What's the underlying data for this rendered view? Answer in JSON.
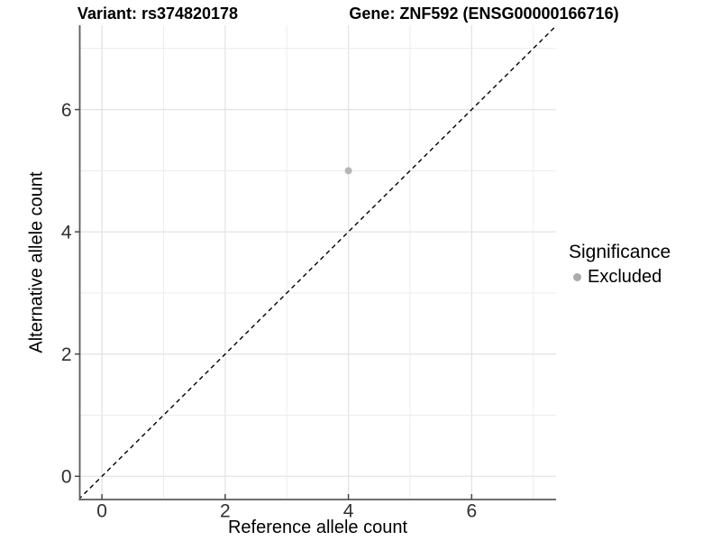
{
  "titles": {
    "variant": "Variant: rs374820178",
    "gene": "Gene: ZNF592 (ENSG00000166716)"
  },
  "legend": {
    "title": "Significance",
    "items": [
      {
        "label": "Excluded",
        "color": "#ababab"
      }
    ]
  },
  "chart_data": {
    "type": "scatter",
    "title": "Variant: rs374820178 / Gene: ZNF592 (ENSG00000166716)",
    "xlabel": "Reference allele count",
    "ylabel": "Alternative allele count",
    "xlim": [
      -0.36,
      7.37
    ],
    "ylim": [
      -0.38,
      7.38
    ],
    "x_ticks": [
      {
        "value": 0,
        "label": "0"
      },
      {
        "value": 1,
        "label": ""
      },
      {
        "value": 2,
        "label": "2"
      },
      {
        "value": 3,
        "label": ""
      },
      {
        "value": 4,
        "label": "4"
      },
      {
        "value": 5,
        "label": ""
      },
      {
        "value": 6,
        "label": "6"
      },
      {
        "value": 7,
        "label": ""
      }
    ],
    "y_ticks": [
      {
        "value": 0,
        "label": "0"
      },
      {
        "value": 1,
        "label": ""
      },
      {
        "value": 2,
        "label": "2"
      },
      {
        "value": 3,
        "label": ""
      },
      {
        "value": 4,
        "label": "4"
      },
      {
        "value": 5,
        "label": ""
      },
      {
        "value": 6,
        "label": "6"
      },
      {
        "value": 7,
        "label": ""
      }
    ],
    "grid": true,
    "series": [
      {
        "name": "Excluded",
        "color": "#b5b5b5",
        "points": [
          {
            "x": 4,
            "y": 5
          }
        ]
      }
    ],
    "reference_line": {
      "type": "identity",
      "style": "dashed",
      "color": "#000000"
    },
    "legend_position": "right",
    "colors": {
      "grid_major": "#e4e4e4",
      "grid_minor": "#ececec",
      "axis_line": "#5a5a5a",
      "tick_mark": "#474747",
      "tick_text": "#303030"
    }
  }
}
